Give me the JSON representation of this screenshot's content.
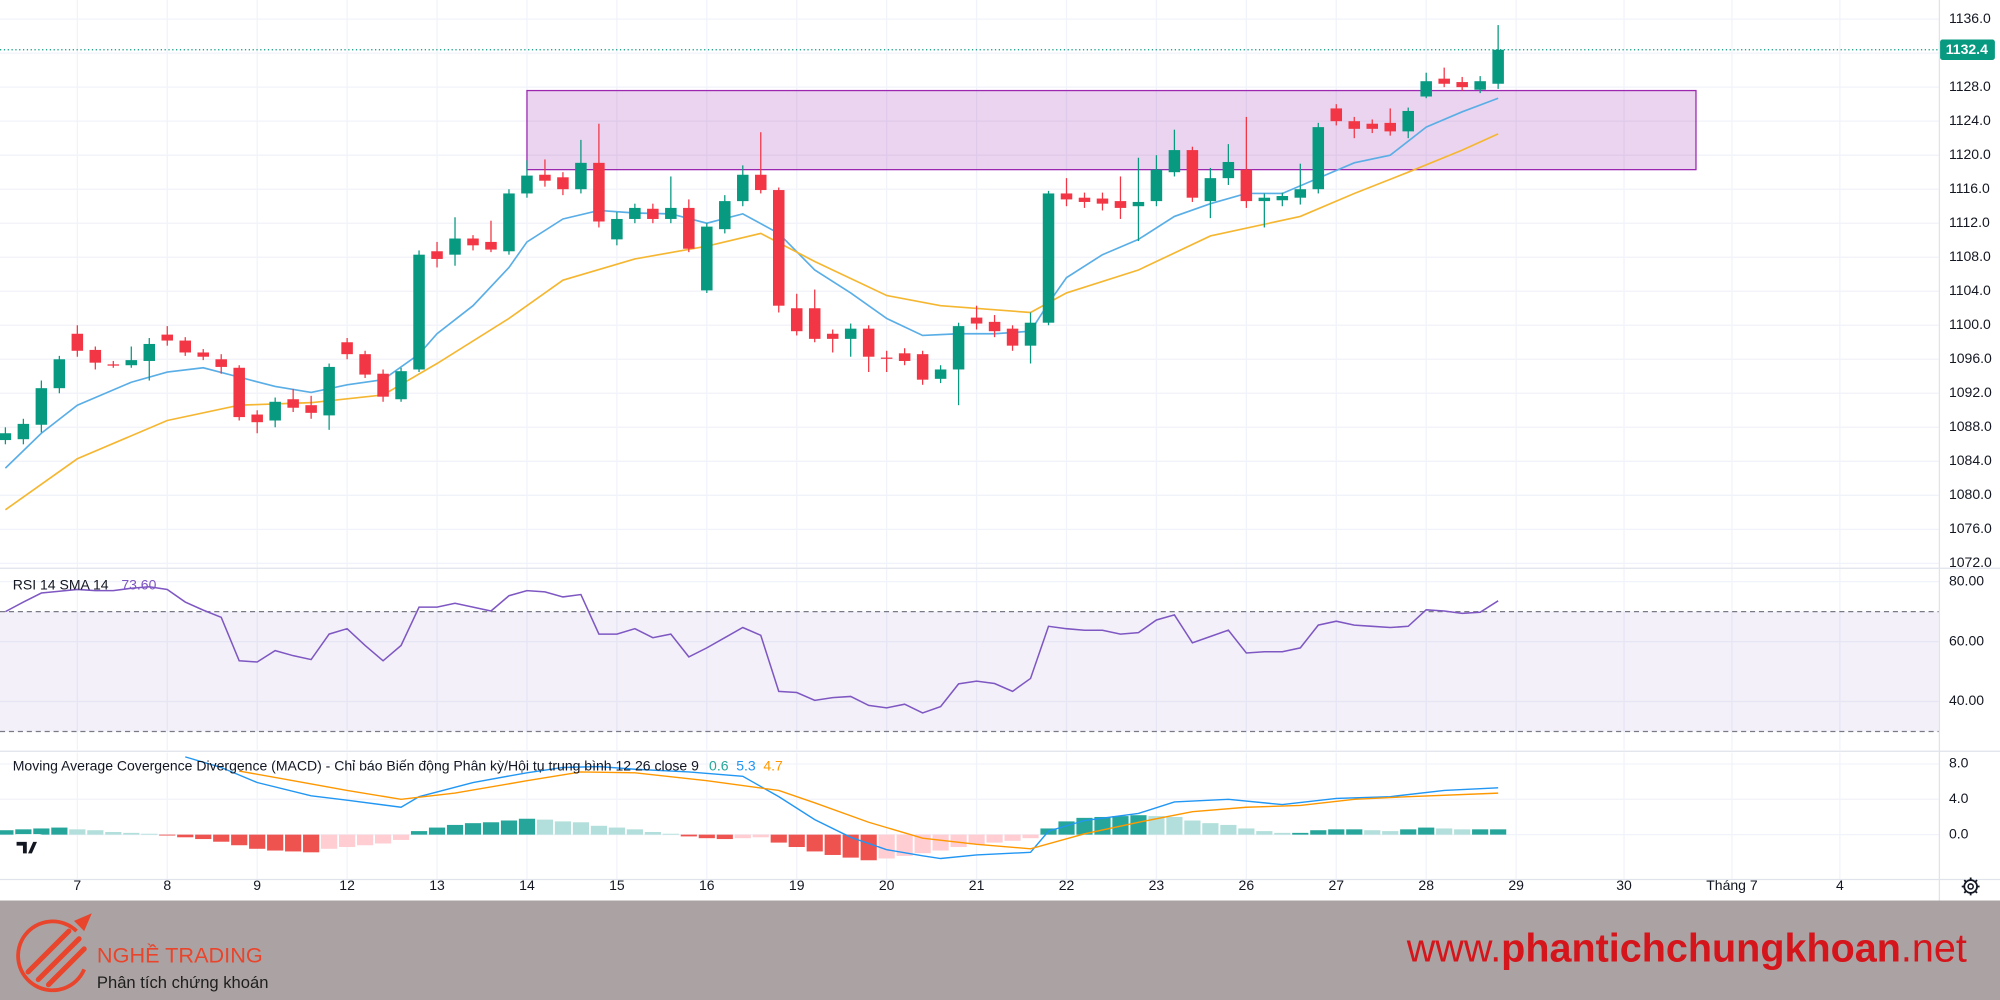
{
  "chart_data": [
    {
      "type": "candlestick",
      "up_color": "#089981",
      "down_color": "#f23645",
      "open": [
        1086.5,
        1086.6,
        1088.3,
        1092.6,
        1099,
        1097.1,
        1095.4,
        1095.3,
        1095.8,
        1098.9,
        1098.2,
        1096.8,
        1096,
        1095,
        1089.5,
        1088.8,
        1091.3,
        1090.6,
        1089.4,
        1098,
        1096.6,
        1094.3,
        1091.3,
        1094.8,
        1108.7,
        1108.3,
        1110.2,
        1109.8,
        1108.7,
        1115.5,
        1117.7,
        1117.4,
        1116,
        1119.1,
        1110.1,
        1112.5,
        1113.7,
        1112.5,
        1113.8,
        1104.1,
        1111.3,
        1114.6,
        1117.7,
        1115.9,
        1102,
        1102,
        1099,
        1098.4,
        1099.6,
        1096.2,
        1096.7,
        1096.6,
        1093.7,
        1094.8,
        1100.9,
        1100.4,
        1099.6,
        1097.6,
        1100.3,
        1115.5,
        1115,
        1114.9,
        1114.6,
        1114,
        1114.6,
        1118,
        1120.6,
        1114.6,
        1117.3,
        1118.3,
        1114.6,
        1114.7,
        1115,
        1116,
        1125.5,
        1124,
        1123.7,
        1123.8,
        1122.8,
        1126.9,
        1129,
        1128.6,
        1127.7,
        1128.4
      ],
      "high": [
        1088,
        1089,
        1093.5,
        1096.4,
        1100,
        1097.5,
        1095.8,
        1097.5,
        1098.5,
        1099.9,
        1098.6,
        1097.2,
        1096.6,
        1095.3,
        1090,
        1091.5,
        1092.5,
        1091.7,
        1095.5,
        1098.5,
        1097,
        1094.8,
        1095,
        1108.8,
        1109.8,
        1112.7,
        1110.6,
        1112.3,
        1116,
        1119.4,
        1119.5,
        1118,
        1121.8,
        1123.7,
        1113.3,
        1114.3,
        1114.3,
        1117.5,
        1114.8,
        1112,
        1115.3,
        1118.8,
        1122.7,
        1116.2,
        1103.7,
        1104.2,
        1099.5,
        1100.2,
        1100,
        1097,
        1097.3,
        1097,
        1095.3,
        1100.3,
        1102.3,
        1101.2,
        1100,
        1101.5,
        1115.8,
        1117.3,
        1115.6,
        1115.6,
        1117.5,
        1119.7,
        1120,
        1123,
        1121,
        1118.5,
        1121.3,
        1124.5,
        1115.5,
        1115.6,
        1119,
        1123.8,
        1126,
        1124.5,
        1124.2,
        1125.5,
        1125.6,
        1129.7,
        1130.3,
        1129.2,
        1129.3,
        1135.3
      ],
      "low": [
        1086,
        1086,
        1087.4,
        1092,
        1096.3,
        1094.8,
        1095,
        1095,
        1093.5,
        1097.6,
        1096.4,
        1095.9,
        1094.3,
        1088.8,
        1087.3,
        1088,
        1089.8,
        1089,
        1087.7,
        1096,
        1093.8,
        1091,
        1091,
        1094.5,
        1106.8,
        1107,
        1108.8,
        1108.6,
        1108.3,
        1115,
        1116.3,
        1115.3,
        1115.5,
        1111.5,
        1109.4,
        1112,
        1112,
        1112,
        1108.6,
        1103.8,
        1110.8,
        1114,
        1115.5,
        1101.5,
        1098.8,
        1098,
        1096.8,
        1096.3,
        1094.5,
        1094.5,
        1095.3,
        1093,
        1093.2,
        1090.6,
        1099.5,
        1098.6,
        1097,
        1095.5,
        1100,
        1114,
        1113.8,
        1113.5,
        1112.5,
        1109.9,
        1114,
        1117.5,
        1114.5,
        1112.6,
        1116.5,
        1113.8,
        1111.5,
        1114,
        1114.2,
        1115.5,
        1123.5,
        1122,
        1122.6,
        1122.3,
        1122,
        1126.7,
        1128,
        1127.6,
        1127.3,
        1127.8
      ],
      "close": [
        1087.3,
        1088.4,
        1092.6,
        1096,
        1097,
        1095.6,
        1095.3,
        1095.9,
        1097.8,
        1098.2,
        1096.8,
        1096.3,
        1095.1,
        1089.2,
        1088.6,
        1091,
        1090.3,
        1089.7,
        1095.1,
        1096.6,
        1094.2,
        1091.6,
        1094.6,
        1108.3,
        1107.8,
        1110.2,
        1109.4,
        1108.9,
        1115.5,
        1117.6,
        1117,
        1116,
        1119.1,
        1112.2,
        1112.5,
        1113.8,
        1112.5,
        1113.8,
        1109,
        1111.6,
        1114.6,
        1117.7,
        1115.9,
        1102.3,
        1099.3,
        1098.4,
        1098.4,
        1099.6,
        1096.3,
        1096.1,
        1095.8,
        1093.6,
        1094.8,
        1099.9,
        1100.2,
        1099.3,
        1097.6,
        1100.3,
        1115.5,
        1114.8,
        1114.5,
        1114.3,
        1113.8,
        1114.5,
        1118.3,
        1120.6,
        1115,
        1117.3,
        1119.2,
        1114.6,
        1115,
        1115.2,
        1116,
        1123.3,
        1124,
        1123.1,
        1123.1,
        1122.8,
        1125.2,
        1128.7,
        1128.4,
        1128,
        1128.7,
        1132.4
      ],
      "series": [
        {
          "color": "#5aaee6",
          "x": [
            0,
            2,
            4,
            7,
            9,
            11,
            13,
            15,
            17,
            19,
            21,
            23,
            24,
            26,
            28,
            29,
            31,
            33,
            35,
            37,
            39,
            41,
            43,
            45,
            47,
            49,
            51,
            53,
            55,
            57,
            58,
            59,
            61,
            63,
            65,
            67,
            69,
            71,
            73,
            75,
            77,
            79,
            81,
            83
          ],
          "values": [
            1083.2,
            1087.3,
            1090.6,
            1093.3,
            1094.5,
            1095,
            1093.9,
            1092.8,
            1092.1,
            1093,
            1093.6,
            1096.6,
            1099,
            1102.3,
            1106.8,
            1109.8,
            1112.5,
            1113.5,
            1113.2,
            1113.1,
            1112,
            1113.1,
            1110.8,
            1106.5,
            1103.8,
            1100.8,
            1098.8,
            1099,
            1099,
            1099.3,
            1102.6,
            1105.6,
            1108.3,
            1110.1,
            1112.8,
            1114.3,
            1115.5,
            1115.5,
            1117.3,
            1119.1,
            1120,
            1123.3,
            1125.1,
            1126.7
          ]
        },
        {
          "color": "#f5b731",
          "x": [
            0,
            4,
            9,
            13,
            17,
            21,
            24,
            28,
            31,
            35,
            39,
            42,
            45,
            49,
            52,
            57,
            59,
            63,
            67,
            72,
            75,
            78,
            81,
            83
          ],
          "values": [
            1078.3,
            1084.3,
            1088.8,
            1090.6,
            1090.9,
            1091.8,
            1095.5,
            1100.8,
            1105.3,
            1107.8,
            1109.3,
            1110.8,
            1107.5,
            1103.5,
            1102.3,
            1101.5,
            1103.8,
            1106.5,
            1110.5,
            1112.8,
            1115.5,
            1118,
            1120.6,
            1122.5
          ]
        }
      ],
      "zone": {
        "x": [
          29,
          94
        ],
        "y": [
          1118.3,
          1127.6
        ],
        "color": "#9c27b0"
      },
      "ylim": [
        1071.5,
        1138.25
      ],
      "yticks": [
        {
          "value": 1072,
          "label": "1072.0"
        },
        {
          "value": 1076,
          "label": "1076.0"
        },
        {
          "value": 1080,
          "label": "1080.0"
        },
        {
          "value": 1084,
          "label": "1084.0"
        },
        {
          "value": 1088,
          "label": "1088.0"
        },
        {
          "value": 1092,
          "label": "1092.0"
        },
        {
          "value": 1096,
          "label": "1096.0"
        },
        {
          "value": 1100,
          "label": "1100.0"
        },
        {
          "value": 1104,
          "label": "1104.0"
        },
        {
          "value": 1108,
          "label": "1108.0"
        },
        {
          "value": 1112,
          "label": "1112.0"
        },
        {
          "value": 1116,
          "label": "1116.0"
        },
        {
          "value": 1120,
          "label": "1120.0"
        },
        {
          "value": 1124,
          "label": "1124.0"
        },
        {
          "value": 1128,
          "label": "1128.0"
        },
        {
          "value": 1132,
          "label": "1132.0"
        },
        {
          "value": 1136,
          "label": "1136.0"
        }
      ],
      "grid": true
    },
    {
      "type": "line",
      "title": "RSI 14 SMA 14",
      "color": "#7e57c2",
      "values": [
        70,
        73.2,
        76.2,
        76.8,
        77.4,
        77,
        77,
        77.8,
        78.3,
        77.4,
        73.2,
        70.5,
        68.1,
        53.6,
        53.2,
        57,
        55.3,
        54,
        62.5,
        64.3,
        58.7,
        53.6,
        58.7,
        71.5,
        71.5,
        72.8,
        71.5,
        70.2,
        75.3,
        77,
        76.6,
        74.9,
        75.7,
        62.5,
        62.5,
        64.3,
        61.3,
        62.5,
        54.9,
        57.9,
        61.3,
        64.7,
        62.1,
        43.4,
        43,
        40.4,
        41.3,
        41.7,
        38.7,
        37.9,
        39.1,
        36.2,
        38.3,
        45.9,
        46.8,
        46,
        43.4,
        47.7,
        65.1,
        64.3,
        63.8,
        63.8,
        62.5,
        63,
        67.2,
        68.9,
        59.6,
        61.7,
        63.8,
        56.2,
        56.6,
        56.6,
        57.9,
        65.5,
        66.8,
        65.5,
        65.1,
        64.7,
        65.1,
        70.6,
        70.2,
        69.4,
        69.8,
        73.6
      ],
      "value_labels": [
        null,
        null,
        null,
        null,
        null,
        null,
        null,
        null,
        null,
        null,
        null,
        null,
        null,
        null,
        null,
        null,
        null,
        null,
        null,
        null,
        null,
        null,
        null,
        null,
        null,
        null,
        null,
        null,
        null,
        null,
        null,
        null,
        null,
        null,
        null,
        null,
        null,
        null,
        null,
        null,
        null,
        null,
        null,
        null,
        null,
        null,
        null,
        null,
        null,
        null,
        null,
        null,
        null,
        null,
        null,
        null,
        null,
        null,
        null,
        null,
        null,
        null,
        null,
        null,
        null,
        null,
        null,
        null,
        null,
        null,
        null,
        null,
        null,
        null,
        null,
        null,
        null,
        null,
        null,
        null,
        null,
        null,
        null,
        "73.60"
      ],
      "band": [
        30,
        70
      ],
      "ylim": [
        23.83,
        84.26
      ],
      "yticks": [
        {
          "value": 40,
          "label": "40.00"
        },
        {
          "value": 60,
          "label": "60.00"
        },
        {
          "value": 80,
          "label": "80.00"
        }
      ],
      "grid": true
    },
    {
      "type": "bar",
      "title": "Moving Average Covergence Divergence (MACD) - Chỉ báo Biến động Phân kỳ/Hội tụ trung bình 12 26 close 9",
      "colors": [
        "#26a69a",
        "#b2dfdb",
        "#ffcdd2",
        "#ef5350"
      ],
      "values": [
        0.5,
        0.6,
        0.7,
        0.8,
        0.6,
        0.5,
        0.3,
        0.2,
        0.1,
        -0.1,
        -0.3,
        -0.5,
        -0.8,
        -1.2,
        -1.6,
        -1.8,
        -1.9,
        -2,
        -1.6,
        -1.4,
        -1.2,
        -1,
        -0.6,
        0.4,
        0.8,
        1.1,
        1.3,
        1.4,
        1.6,
        1.8,
        1.7,
        1.5,
        1.4,
        1,
        0.8,
        0.6,
        0.3,
        0.1,
        -0.2,
        -0.4,
        -0.5,
        -0.4,
        -0.3,
        -0.9,
        -1.4,
        -1.9,
        -2.3,
        -2.6,
        -2.9,
        -2.7,
        -2.4,
        -2.1,
        -1.8,
        -1.4,
        -1.1,
        -0.9,
        -0.7,
        -0.4,
        0.7,
        1.5,
        1.9,
        2,
        2.1,
        2.2,
        2.1,
        2,
        1.6,
        1.3,
        1.1,
        0.7,
        0.4,
        0.2,
        0.2,
        0.5,
        0.6,
        0.6,
        0.5,
        0.4,
        0.6,
        0.8,
        0.7,
        0.6,
        0.6,
        0.6
      ],
      "series": [
        {
          "color": "#2196f3",
          "x": [
            10,
            12,
            14,
            17,
            19,
            22,
            23,
            26,
            29,
            31,
            33,
            35,
            38,
            41,
            43,
            45,
            47,
            49,
            51,
            52,
            54,
            57,
            58,
            60,
            63,
            65,
            68,
            71,
            74,
            77,
            80,
            83
          ],
          "values": [
            8.8,
            7.6,
            5.9,
            4.4,
            3.9,
            3.1,
            4.3,
            5.9,
            7,
            7.6,
            7.7,
            7.4,
            7.1,
            6.6,
            4.3,
            1.7,
            -0.3,
            -1.7,
            -2.4,
            -2.7,
            -2.3,
            -2,
            0.4,
            1.6,
            2.4,
            3.7,
            4,
            3.4,
            4.1,
            4.3,
            5,
            5.3
          ]
        },
        {
          "color": "#ff9800",
          "x": [
            13,
            16,
            19,
            22,
            25,
            29,
            32,
            35,
            39,
            43,
            45,
            48,
            51,
            54,
            57,
            60,
            63,
            66,
            69,
            72,
            75,
            78,
            83
          ],
          "values": [
            7.2,
            6.1,
            5,
            4,
            4.7,
            6.1,
            7.1,
            7,
            6.1,
            5,
            3.6,
            1.4,
            -0.4,
            -1.1,
            -1.6,
            0.1,
            1.4,
            2.6,
            3.1,
            3.3,
            4,
            4.3,
            4.7
          ]
        }
      ],
      "ylim": [
        -5,
        9.29
      ],
      "yticks": [
        {
          "value": 0,
          "label": "0.0"
        },
        {
          "value": 4,
          "label": "4.0"
        },
        {
          "value": 8,
          "label": "8.0"
        }
      ],
      "xlim": [
        -0.3,
        107.5
      ],
      "xticks": [
        {
          "value": 4,
          "label": "7"
        },
        {
          "value": 9,
          "label": "8"
        },
        {
          "value": 14,
          "label": "9"
        },
        {
          "value": 19,
          "label": "12"
        },
        {
          "value": 24,
          "label": "13"
        },
        {
          "value": 29,
          "label": "14"
        },
        {
          "value": 34,
          "label": "15"
        },
        {
          "value": 39,
          "label": "16"
        },
        {
          "value": 44,
          "label": "19"
        },
        {
          "value": 49,
          "label": "20"
        },
        {
          "value": 54,
          "label": "21"
        },
        {
          "value": 59,
          "label": "22"
        },
        {
          "value": 64,
          "label": "23"
        },
        {
          "value": 69,
          "label": "26"
        },
        {
          "value": 74,
          "label": "27"
        },
        {
          "value": 79,
          "label": "28"
        },
        {
          "value": 84,
          "label": "29"
        },
        {
          "value": 90,
          "label": "30"
        },
        {
          "value": 96,
          "label": "Tháng 7"
        },
        {
          "value": 102,
          "label": "4"
        }
      ],
      "grid": true
    }
  ],
  "footer": {
    "brand": "NGHỀ TRADING",
    "tagline": "Phân tích chứng khoán",
    "site_prefix": "www.",
    "site_name": "phantichchungkhoan",
    "site_suffix": ".net"
  }
}
